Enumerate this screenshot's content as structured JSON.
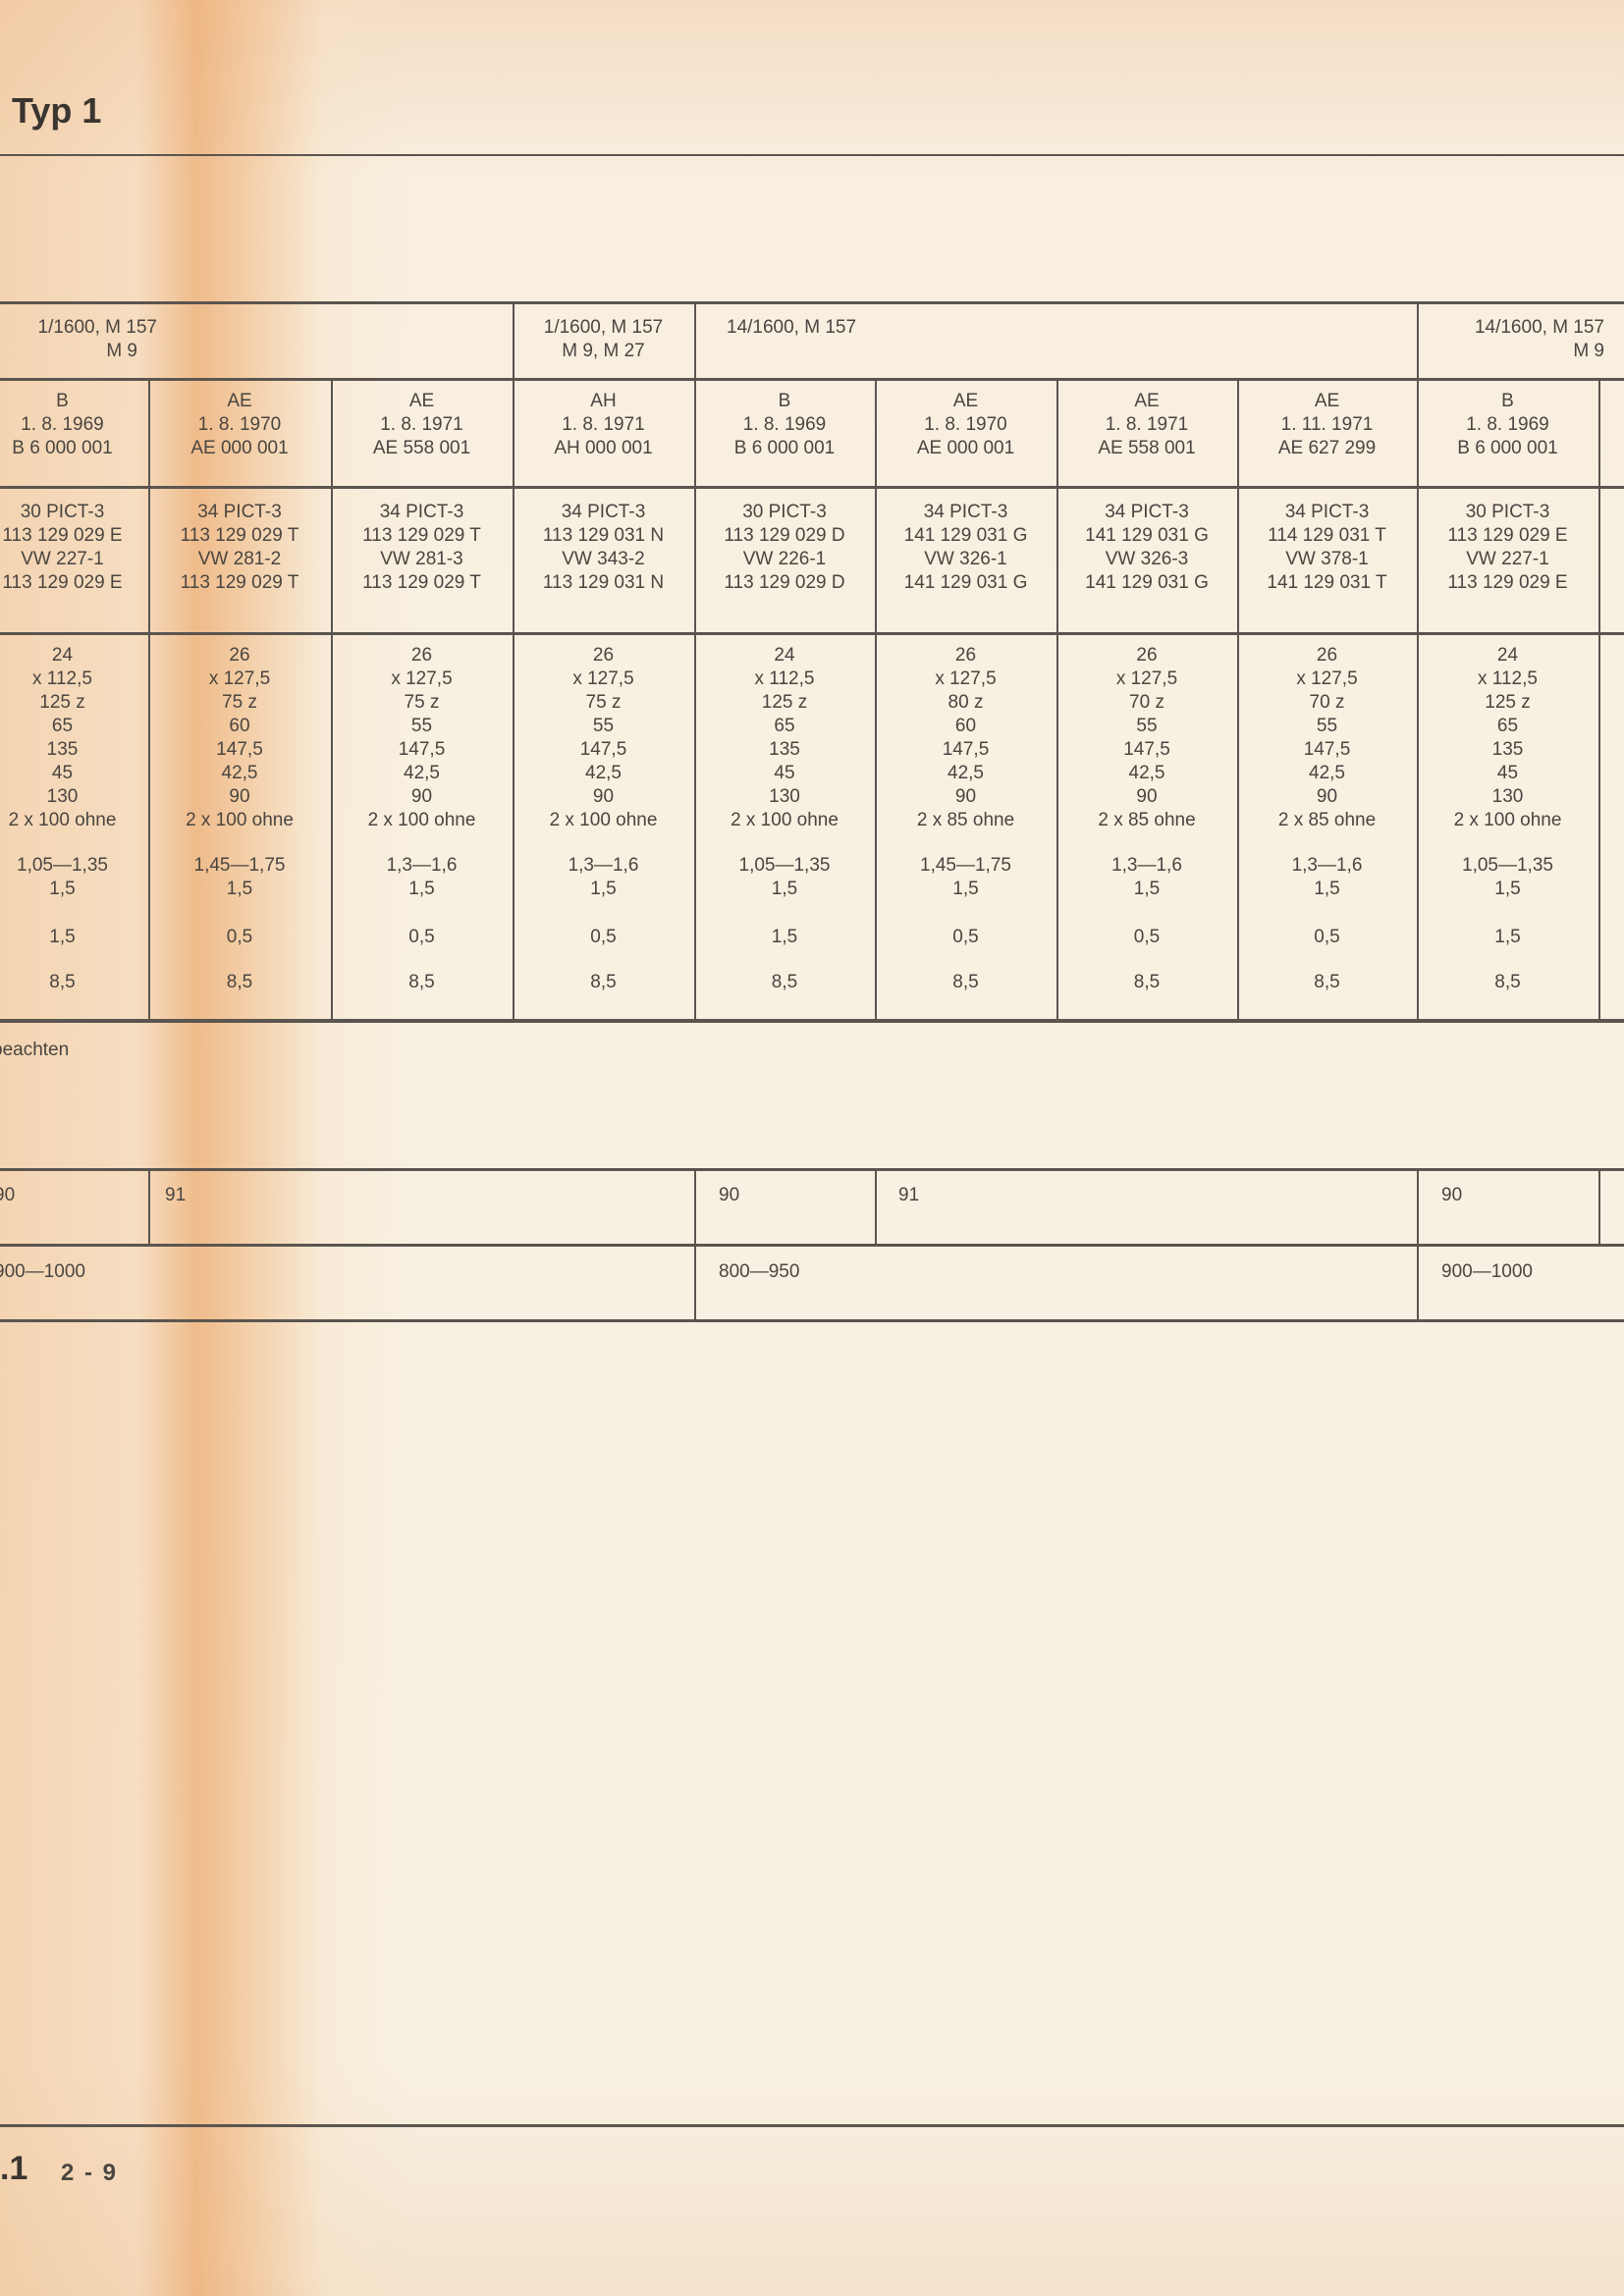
{
  "header": {
    "title": "Typ 1"
  },
  "table": {
    "engine_groups": [
      {
        "lines": [
          "1/1600, M 157",
          "M 9"
        ]
      },
      {
        "lines": [
          "1/1600, M 157",
          "M 9,  M 27"
        ]
      },
      {
        "lines": [
          "14/1600, M 157"
        ]
      },
      {
        "lines": [
          "14/1600, M 157",
          "M 9"
        ]
      }
    ],
    "columns": [
      {
        "id": [
          "B",
          "1. 8. 1969",
          "B 6 000 001"
        ],
        "carb": [
          "30 PICT-3",
          "113 129 029 E",
          "VW 227-1",
          "113 129 029 E"
        ],
        "jets": [
          "24",
          "x 112,5",
          "125 z",
          "65",
          "135",
          "45",
          "130",
          "2 x 100  ohne"
        ],
        "level": [
          "1,05—1,35",
          "1,5"
        ],
        "a": "1,5",
        "b": "8,5"
      },
      {
        "id": [
          "AE",
          "1. 8. 1970",
          "AE 000 001"
        ],
        "carb": [
          "34 PICT-3",
          "113 129 029 T",
          "VW 281-2",
          "113 129 029 T"
        ],
        "jets": [
          "26",
          "x 127,5",
          "75 z",
          "60",
          "147,5",
          "42,5",
          "90",
          "2 x 100  ohne"
        ],
        "level": [
          "1,45—1,75",
          "1,5"
        ],
        "a": "0,5",
        "b": "8,5"
      },
      {
        "id": [
          "AE",
          "1. 8. 1971",
          "AE 558 001"
        ],
        "carb": [
          "34 PICT-3",
          "113 129 029 T",
          "VW 281-3",
          "113 129 029 T"
        ],
        "jets": [
          "26",
          "x 127,5",
          "75 z",
          "55",
          "147,5",
          "42,5",
          "90",
          "2 x 100  ohne"
        ],
        "level": [
          "1,3—1,6",
          "1,5"
        ],
        "a": "0,5",
        "b": "8,5"
      },
      {
        "id": [
          "AH",
          "1. 8. 1971",
          "AH 000 001"
        ],
        "carb": [
          "34 PICT-3",
          "113 129 031 N",
          "VW 343-2",
          "113 129 031 N"
        ],
        "jets": [
          "26",
          "x 127,5",
          "75 z",
          "55",
          "147,5",
          "42,5",
          "90",
          "2 x 100  ohne"
        ],
        "level": [
          "1,3—1,6",
          "1,5"
        ],
        "a": "0,5",
        "b": "8,5"
      },
      {
        "id": [
          "B",
          "1. 8. 1969",
          "B 6 000 001"
        ],
        "carb": [
          "30 PICT-3",
          "113 129 029 D",
          "VW 226-1",
          "113 129 029 D"
        ],
        "jets": [
          "24",
          "x 112,5",
          "125 z",
          "65",
          "135",
          "45",
          "130",
          "2 x 100  ohne"
        ],
        "level": [
          "1,05—1,35",
          "1,5"
        ],
        "a": "1,5",
        "b": "8,5"
      },
      {
        "id": [
          "AE",
          "1. 8. 1970",
          "AE 000 001"
        ],
        "carb": [
          "34 PICT-3",
          "141 129 031 G",
          "VW 326-1",
          "141 129 031 G"
        ],
        "jets": [
          "26",
          "x 127,5",
          "80 z",
          "60",
          "147,5",
          "42,5",
          "90",
          "2 x 85  ohne"
        ],
        "level": [
          "1,45—1,75",
          "1,5"
        ],
        "a": "0,5",
        "b": "8,5"
      },
      {
        "id": [
          "AE",
          "1. 8. 1971",
          "AE 558 001"
        ],
        "carb": [
          "34 PICT-3",
          "141 129 031 G",
          "VW 326-3",
          "141 129 031 G"
        ],
        "jets": [
          "26",
          "x 127,5",
          "70 z",
          "55",
          "147,5",
          "42,5",
          "90",
          "2 x 85  ohne"
        ],
        "level": [
          "1,3—1,6",
          "1,5"
        ],
        "a": "0,5",
        "b": "8,5"
      },
      {
        "id": [
          "AE",
          "1. 11. 1971",
          "AE 627 299"
        ],
        "carb": [
          "34 PICT-3",
          "114 129 031 T",
          "VW 378-1",
          "141 129 031 T"
        ],
        "jets": [
          "26",
          "x 127,5",
          "70 z",
          "55",
          "147,5",
          "42,5",
          "90",
          "2 x 85  ohne"
        ],
        "level": [
          "1,3—1,6",
          "1,5"
        ],
        "a": "0,5",
        "b": "8,5"
      },
      {
        "id": [
          "B",
          "1. 8. 1969",
          "B 6 000 001"
        ],
        "carb": [
          "30 PICT-3",
          "113 129 029 E",
          "VW 227-1",
          "113 129 029 E"
        ],
        "jets": [
          "24",
          "x 112,5",
          "125 z",
          "65",
          "135",
          "45",
          "130",
          "2 x 100  ohne"
        ],
        "level": [
          "1,05—1,35",
          "1,5"
        ],
        "a": "1,5",
        "b": "8,5"
      }
    ],
    "note": "beachten",
    "octane_row": [
      "90",
      "91",
      "90",
      "91",
      "90"
    ],
    "rpm_row": [
      "900—1000",
      "800—950",
      "900—1000"
    ]
  },
  "footer": {
    "section": ".1",
    "page": "2 - 9"
  }
}
